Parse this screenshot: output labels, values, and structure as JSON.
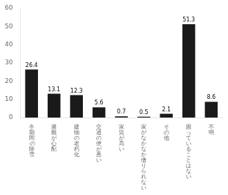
{
  "chart_data": {
    "type": "bar",
    "categories": [
      "冬\n期\n間\n の\n除\n雪",
      "避\n難\nが\n心\n配",
      "建\n物\nの\n老\n朽\n化",
      "交\n通\nの\n便\nが\n悪\nい",
      "家\n賃\nが\n高\nい",
      "家\nが\nな\nか\nな\nか\n借\nり\nら\nれ\nな\nい",
      "そ\nの\n他",
      "困\nっ\nて\nい\nる\nこ\nと\nは\nな\nい",
      "不\n明"
    ],
    "values": [
      26.4,
      13.1,
      12.3,
      5.6,
      0.7,
      0.5,
      2.1,
      51.3,
      8.6
    ],
    "color": "#1a1a1a",
    "ylim": [
      0,
      60
    ],
    "yticks": [
      0,
      10,
      20,
      30,
      40,
      50,
      60
    ],
    "grid": false,
    "data_labels": true
  }
}
